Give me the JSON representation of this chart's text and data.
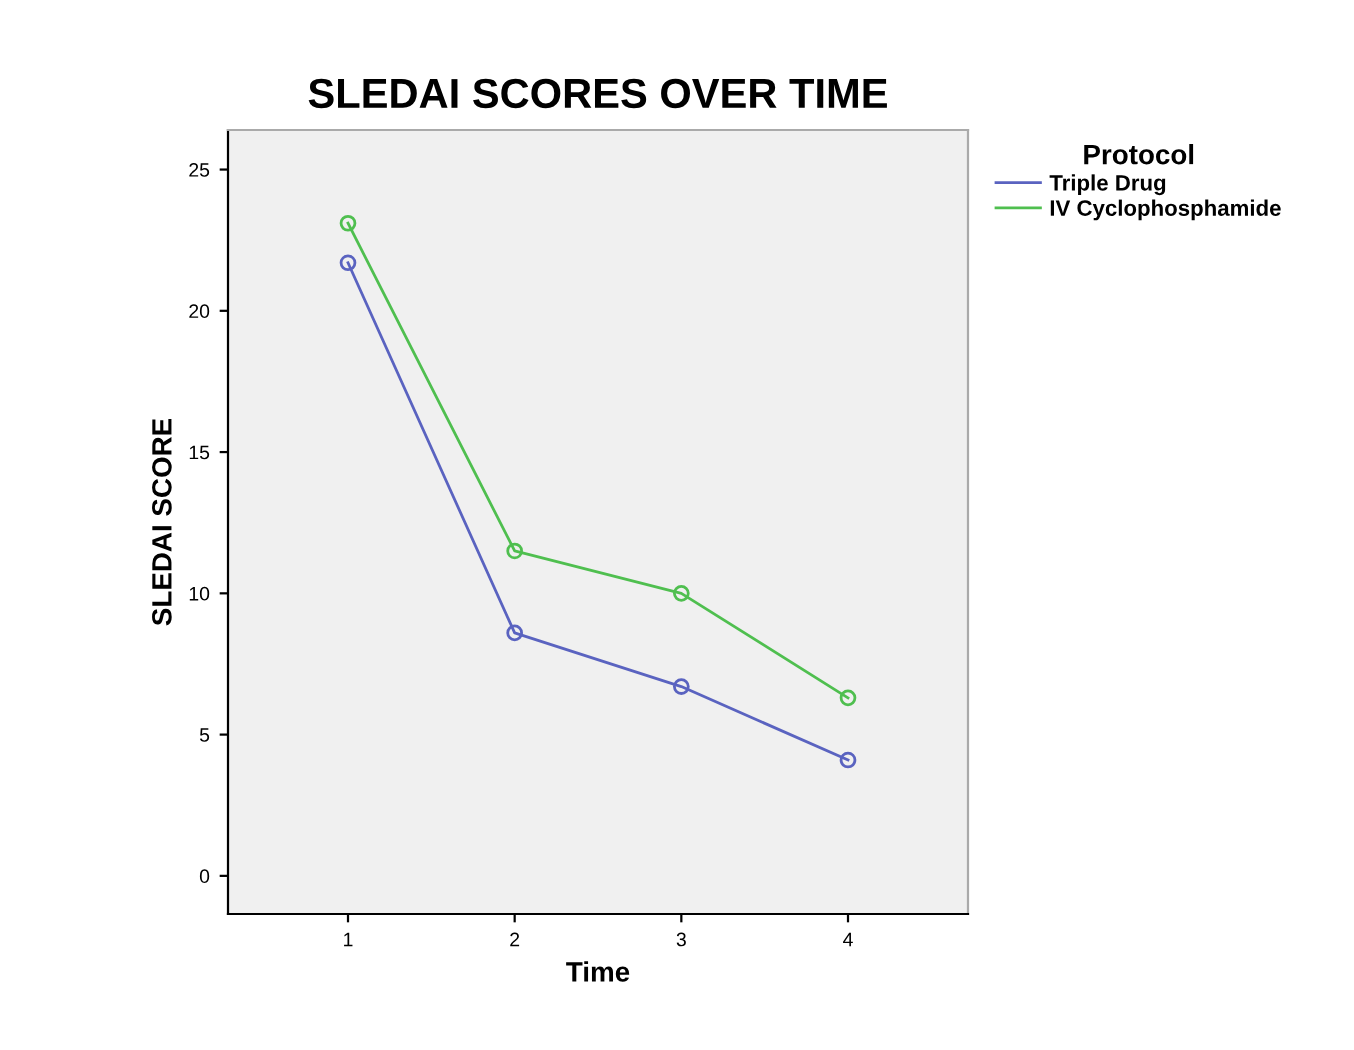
{
  "chart_data": {
    "type": "line",
    "title": "SLEDAI SCORES OVER TIME",
    "xlabel": "Time",
    "ylabel": "SLEDAI SCORE",
    "legend_title": "Protocol",
    "x": [
      1,
      2,
      3,
      4
    ],
    "series": [
      {
        "name": "Triple Drug",
        "color": "#5a63c0",
        "values": [
          21.7,
          8.6,
          6.7,
          4.1
        ]
      },
      {
        "name": "IV Cyclophosphamide",
        "color": "#4fbf4f",
        "values": [
          23.1,
          11.5,
          10.0,
          6.3
        ]
      }
    ],
    "xlim": [
      0.28,
      4.72
    ],
    "ylim": [
      -1.35,
      26.4
    ],
    "xticks": [
      1,
      2,
      3,
      4
    ],
    "yticks": [
      0,
      5,
      10,
      15,
      20,
      25
    ],
    "marker": "circle",
    "line_style": "solid",
    "grid": false,
    "legend": "top right"
  }
}
